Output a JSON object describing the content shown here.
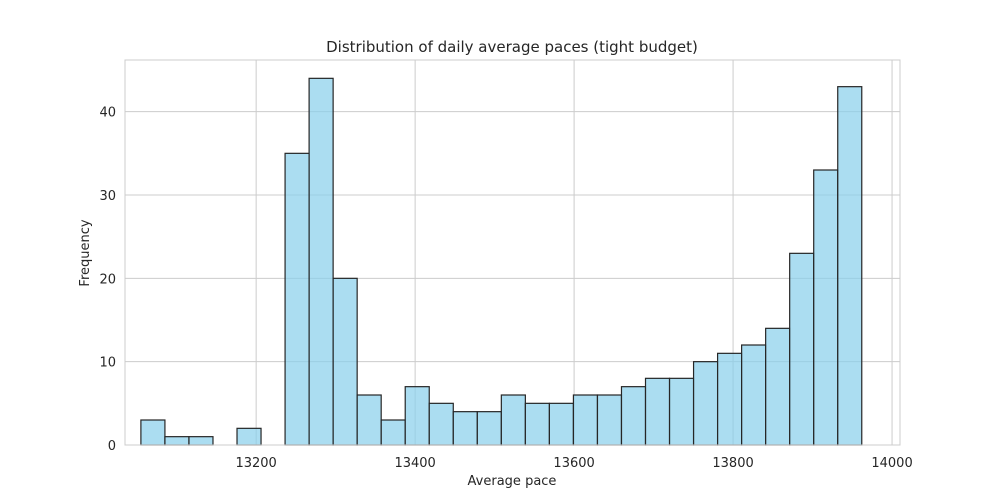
{
  "chart_data": {
    "type": "bar",
    "title": "Distribution of daily average paces (tight budget)",
    "xlabel": "Average pace",
    "ylabel": "Frequency",
    "xlim": [
      13035,
      14010
    ],
    "ylim": [
      0,
      46.2
    ],
    "xticks": [
      13200,
      13400,
      13600,
      13800,
      14000
    ],
    "yticks": [
      0,
      10,
      20,
      30,
      40
    ],
    "grid": true,
    "legend": "none",
    "bin_start": 13055,
    "bin_width": 30.23,
    "values": [
      3,
      1,
      1,
      0,
      2,
      0,
      35,
      44,
      20,
      6,
      3,
      7,
      5,
      4,
      4,
      6,
      5,
      5,
      6,
      6,
      7,
      8,
      8,
      10,
      11,
      12,
      14,
      23,
      33,
      43
    ],
    "bar_fill": "#87ceeb",
    "bar_edge": "#262626",
    "grid_color": "#cccccc"
  }
}
